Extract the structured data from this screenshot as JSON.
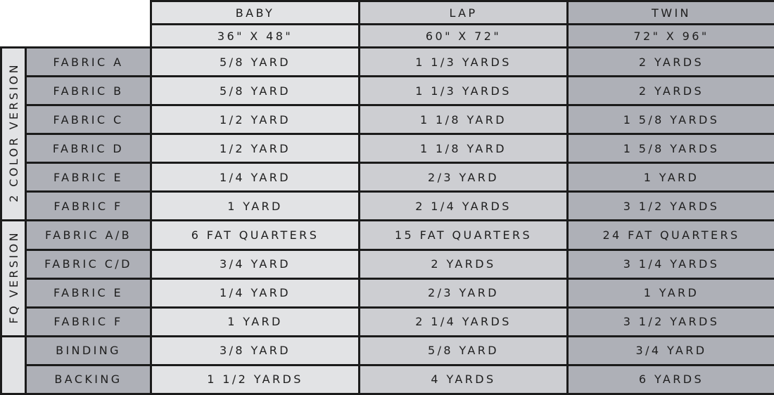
{
  "columns": [
    {
      "name": "BABY",
      "size": "36\" X 48\""
    },
    {
      "name": "LAP",
      "size": "60\" X 72\""
    },
    {
      "name": "TWIN",
      "size": "72\" X 96\""
    }
  ],
  "groups": [
    {
      "label": "2 COLOR VERSION",
      "rows": [
        {
          "label": "FABRIC A",
          "values": [
            "5/8 YARD",
            "1 1/3 YARDS",
            "2 YARDS"
          ]
        },
        {
          "label": "FABRIC B",
          "values": [
            "5/8 YARD",
            "1 1/3 YARDS",
            "2 YARDS"
          ]
        },
        {
          "label": "FABRIC C",
          "values": [
            "1/2 YARD",
            "1 1/8 YARD",
            "1 5/8 YARDS"
          ]
        },
        {
          "label": "FABRIC D",
          "values": [
            "1/2 YARD",
            "1 1/8 YARD",
            "1 5/8 YARDS"
          ]
        },
        {
          "label": "FABRIC E",
          "values": [
            "1/4 YARD",
            "2/3 YARD",
            "1 YARD"
          ]
        },
        {
          "label": "FABRIC F",
          "values": [
            "1 YARD",
            "2 1/4 YARDS",
            "3 1/2 YARDS"
          ]
        }
      ]
    },
    {
      "label": "FQ VERSION",
      "rows": [
        {
          "label": "FABRIC A/B",
          "values": [
            "6 FAT QUARTERS",
            "15 FAT QUARTERS",
            "24 FAT QUARTERS"
          ]
        },
        {
          "label": "FABRIC C/D",
          "values": [
            "3/4 YARD",
            "2 YARDS",
            "3 1/4 YARDS"
          ]
        },
        {
          "label": "FABRIC E",
          "values": [
            "1/4 YARD",
            "2/3 YARD",
            "1 YARD"
          ]
        },
        {
          "label": "FABRIC F",
          "values": [
            "1 YARD",
            "2 1/4 YARDS",
            "3 1/2 YARDS"
          ]
        }
      ]
    },
    {
      "label": "",
      "rows": [
        {
          "label": "BINDING",
          "values": [
            "3/8 YARD",
            "5/8 YARD",
            "3/4 YARD"
          ]
        },
        {
          "label": "BACKING",
          "values": [
            "1 1/2 YARDS",
            "4 YARDS",
            "6 YARDS"
          ]
        }
      ]
    }
  ],
  "colors": {
    "light": "#e2e3e5",
    "mid": "#cdced2",
    "dark": "#aeb0b7",
    "border": "#1b1b1b"
  }
}
